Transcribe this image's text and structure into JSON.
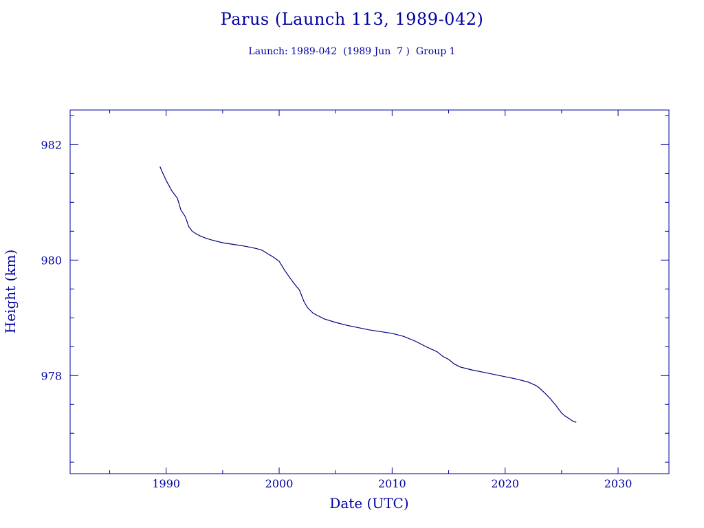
{
  "chart_data": {
    "type": "line",
    "title": "Parus (Launch 113, 1989-042)",
    "subtitle": "Launch: 1989-042  (1989 Jun  7 )  Group 1",
    "xlabel": "Date (UTC)",
    "ylabel": "Height (km)",
    "xlim": [
      1981.5,
      2034.5
    ],
    "ylim": [
      976.3,
      982.6
    ],
    "x_ticks": [
      1990,
      2000,
      2010,
      2020,
      2030
    ],
    "y_ticks": [
      978,
      980,
      982
    ],
    "grid": false,
    "line_color": "#000080",
    "axis_color": "#0000a0",
    "series": [
      {
        "x": [
          1989.45,
          1989.6,
          1990.0,
          1990.5,
          1991.0,
          1991.3,
          1991.7,
          1992.0,
          1992.3,
          1992.7,
          1993.0,
          1993.5,
          1994.0,
          1995.0,
          1996.0,
          1997.0,
          1998.0,
          1998.5,
          1999.0,
          1999.5,
          2000.0,
          2000.5,
          2001.0,
          2001.5,
          2001.8,
          2002.2,
          2002.5,
          2003.0,
          2003.5,
          2004.0,
          2005.0,
          2006.0,
          2007.0,
          2008.0,
          2009.0,
          2010.0,
          2011.0,
          2012.0,
          2013.0,
          2014.0,
          2014.5,
          2015.0,
          2015.5,
          2016.0,
          2017.0,
          2018.0,
          2019.0,
          2020.0,
          2021.0,
          2022.0,
          2022.7,
          2023.0,
          2023.5,
          2024.0,
          2024.5,
          2025.0,
          2025.3,
          2025.7,
          2026.0,
          2026.3
        ],
        "y": [
          981.62,
          981.55,
          981.38,
          981.2,
          981.07,
          980.87,
          980.75,
          980.58,
          980.5,
          980.45,
          980.42,
          980.38,
          980.35,
          980.3,
          980.27,
          980.24,
          980.2,
          980.17,
          980.11,
          980.05,
          979.98,
          979.82,
          979.68,
          979.55,
          979.48,
          979.28,
          979.18,
          979.08,
          979.03,
          978.98,
          978.92,
          978.87,
          978.83,
          978.79,
          978.76,
          978.73,
          978.68,
          978.6,
          978.5,
          978.41,
          978.33,
          978.28,
          978.2,
          978.15,
          978.1,
          978.06,
          978.02,
          977.98,
          977.94,
          977.89,
          977.83,
          977.79,
          977.7,
          977.6,
          977.48,
          977.35,
          977.3,
          977.25,
          977.21,
          977.19
        ]
      }
    ]
  }
}
